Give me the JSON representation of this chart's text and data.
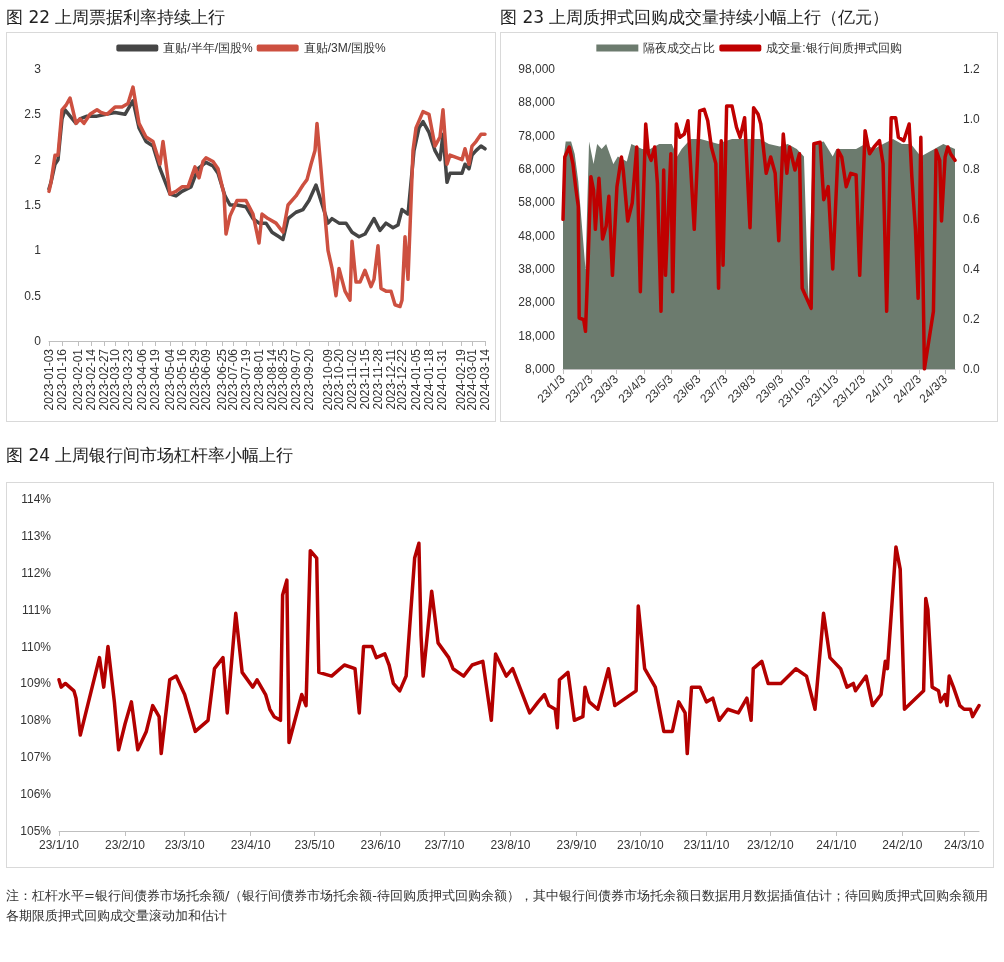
{
  "chart_data": [
    {
      "type": "line",
      "title": "图 22  上周票据利率持续上行",
      "legend": "top",
      "marker": "none",
      "line_style": "solid",
      "grid": false,
      "ylim": [
        0,
        3
      ],
      "yticks": [
        0,
        0.5,
        1,
        1.5,
        2,
        2.5,
        3
      ],
      "xlim": [
        "2023-01-03",
        "2024-03-14"
      ],
      "xticks": [
        "2023-01-03",
        "2023-01-16",
        "2023-02-01",
        "2023-02-14",
        "2023-02-27",
        "2023-03-10",
        "2023-03-23",
        "2023-04-06",
        "2023-04-19",
        "2023-05-04",
        "2023-05-16",
        "2023-05-29",
        "2023-06-09",
        "2023-06-25",
        "2023-07-06",
        "2023-07-19",
        "2023-08-01",
        "2023-08-14",
        "2023-08-25",
        "2023-09-07",
        "2023-09-20",
        "2023-10-09",
        "2023-10-20",
        "2023-11-02",
        "2023-11-15",
        "2023-11-28",
        "2023-12-11",
        "2023-12-22",
        "2024-01-05",
        "2024-01-18",
        "2024-01-31",
        "2024-02-19",
        "2024-03-01",
        "2024-03-14"
      ],
      "series": [
        {
          "name": "直贴/半年/国股%",
          "color": "#454545",
          "x": [
            "2023-01-03",
            "2023-01-05",
            "2023-01-09",
            "2023-01-12",
            "2023-01-16",
            "2023-01-19",
            "2023-01-30",
            "2023-02-03",
            "2023-02-10",
            "2023-02-20",
            "2023-03-01",
            "2023-03-10",
            "2023-03-20",
            "2023-03-28",
            "2023-04-03",
            "2023-04-10",
            "2023-04-17",
            "2023-04-24",
            "2023-05-04",
            "2023-05-10",
            "2023-05-16",
            "2023-05-25",
            "2023-06-01",
            "2023-06-09",
            "2023-06-16",
            "2023-06-21",
            "2023-06-28",
            "2023-07-03",
            "2023-07-10",
            "2023-07-19",
            "2023-07-26",
            "2023-08-01",
            "2023-08-08",
            "2023-08-14",
            "2023-08-21",
            "2023-08-25",
            "2023-08-30",
            "2023-09-07",
            "2023-09-14",
            "2023-09-20",
            "2023-09-27",
            "2023-10-09",
            "2023-10-13",
            "2023-10-20",
            "2023-10-27",
            "2023-11-02",
            "2023-11-09",
            "2023-11-15",
            "2023-11-24",
            "2023-11-30",
            "2023-12-06",
            "2023-12-13",
            "2023-12-18",
            "2023-12-22",
            "2023-12-28",
            "2024-01-03",
            "2024-01-08",
            "2024-01-12",
            "2024-01-18",
            "2024-01-24",
            "2024-01-29",
            "2024-02-01",
            "2024-02-05",
            "2024-02-08",
            "2024-02-20",
            "2024-02-23",
            "2024-02-27",
            "2024-03-01",
            "2024-03-05",
            "2024-03-10",
            "2024-03-14"
          ],
          "values": [
            1.68,
            1.75,
            1.95,
            2.0,
            2.45,
            2.55,
            2.4,
            2.45,
            2.48,
            2.48,
            2.5,
            2.52,
            2.5,
            2.65,
            2.35,
            2.2,
            2.15,
            1.9,
            1.62,
            1.6,
            1.65,
            1.7,
            1.9,
            1.97,
            1.93,
            1.85,
            1.6,
            1.5,
            1.5,
            1.48,
            1.35,
            1.3,
            1.3,
            1.2,
            1.15,
            1.12,
            1.35,
            1.42,
            1.45,
            1.55,
            1.72,
            1.3,
            1.35,
            1.3,
            1.3,
            1.2,
            1.15,
            1.18,
            1.35,
            1.22,
            1.3,
            1.25,
            1.28,
            1.45,
            1.4,
            2.1,
            2.35,
            2.42,
            2.3,
            2.1,
            2.0,
            2.28,
            1.75,
            1.85,
            1.85,
            1.95,
            1.9,
            2.05,
            2.1,
            2.15,
            2.12
          ]
        },
        {
          "name": "直贴/3M/国股%",
          "color": "#cd5040",
          "x": [
            "2023-01-03",
            "2023-01-05",
            "2023-01-09",
            "2023-01-12",
            "2023-01-16",
            "2023-01-20",
            "2023-01-24",
            "2023-01-30",
            "2023-02-03",
            "2023-02-07",
            "2023-02-13",
            "2023-02-20",
            "2023-02-24",
            "2023-03-02",
            "2023-03-10",
            "2023-03-17",
            "2023-03-23",
            "2023-03-28",
            "2023-04-03",
            "2023-04-10",
            "2023-04-17",
            "2023-04-24",
            "2023-04-27",
            "2023-05-04",
            "2023-05-10",
            "2023-05-16",
            "2023-05-22",
            "2023-05-29",
            "2023-06-02",
            "2023-06-06",
            "2023-06-09",
            "2023-06-16",
            "2023-06-21",
            "2023-06-27",
            "2023-06-29",
            "2023-07-03",
            "2023-07-10",
            "2023-07-19",
            "2023-07-26",
            "2023-08-01",
            "2023-08-04",
            "2023-08-10",
            "2023-08-18",
            "2023-08-25",
            "2023-08-30",
            "2023-09-07",
            "2023-09-14",
            "2023-09-18",
            "2023-09-22",
            "2023-09-26",
            "2023-09-28",
            "2023-10-09",
            "2023-10-13",
            "2023-10-17",
            "2023-10-20",
            "2023-10-26",
            "2023-10-31",
            "2023-11-02",
            "2023-11-06",
            "2023-11-10",
            "2023-11-15",
            "2023-11-21",
            "2023-11-24",
            "2023-11-28",
            "2023-12-01",
            "2023-12-06",
            "2023-12-11",
            "2023-12-15",
            "2023-12-20",
            "2023-12-22",
            "2023-12-25",
            "2023-12-28",
            "2024-01-02",
            "2024-01-05",
            "2024-01-12",
            "2024-01-18",
            "2024-01-24",
            "2024-01-29",
            "2024-02-01",
            "2024-02-05",
            "2024-02-08",
            "2024-02-20",
            "2024-02-23",
            "2024-02-27",
            "2024-03-01",
            "2024-03-05",
            "2024-03-10",
            "2024-03-14"
          ],
          "values": [
            1.65,
            1.75,
            2.05,
            2.05,
            2.55,
            2.6,
            2.68,
            2.4,
            2.45,
            2.4,
            2.5,
            2.55,
            2.52,
            2.5,
            2.58,
            2.58,
            2.62,
            2.8,
            2.4,
            2.25,
            2.2,
            1.95,
            2.2,
            1.62,
            1.65,
            1.7,
            1.7,
            1.92,
            1.8,
            1.98,
            2.02,
            1.98,
            1.9,
            1.62,
            1.18,
            1.38,
            1.55,
            1.55,
            1.4,
            1.08,
            1.4,
            1.35,
            1.3,
            1.2,
            1.5,
            1.6,
            1.72,
            1.78,
            1.95,
            2.1,
            2.4,
            1.0,
            0.8,
            0.5,
            0.8,
            0.55,
            0.45,
            1.1,
            0.65,
            0.65,
            0.78,
            0.6,
            0.68,
            1.05,
            0.58,
            0.55,
            0.55,
            0.4,
            0.38,
            0.45,
            1.15,
            0.68,
            2.1,
            2.35,
            2.53,
            2.5,
            2.15,
            2.25,
            2.55,
            1.95,
            2.05,
            2.0,
            2.12,
            1.95,
            2.15,
            2.2,
            2.28,
            2.28
          ]
        }
      ]
    },
    {
      "type": "line",
      "title": "图 23  上周质押式回购成交量持续小幅上行（亿元）",
      "legend": "top",
      "marker": "none",
      "line_style": "solid",
      "grid": false,
      "ylim": [
        8000,
        98000
      ],
      "yticks": [
        {
          "value": 8000,
          "label": "8,000"
        },
        {
          "value": 18000,
          "label": "18,000"
        },
        {
          "value": 28000,
          "label": "28,000"
        },
        {
          "value": 38000,
          "label": "38,000"
        },
        {
          "value": 48000,
          "label": "48,000"
        },
        {
          "value": 58000,
          "label": "58,000"
        },
        {
          "value": 68000,
          "label": "68,000"
        },
        {
          "value": 78000,
          "label": "78,000"
        },
        {
          "value": 88000,
          "label": "88,000"
        },
        {
          "value": 98000,
          "label": "98,000"
        }
      ],
      "y2lim": [
        0,
        1.2
      ],
      "y2ticks": [
        {
          "value": 0,
          "label": "0.0"
        },
        {
          "value": 0.2,
          "label": "0.2"
        },
        {
          "value": 0.4,
          "label": "0.4"
        },
        {
          "value": 0.6,
          "label": "0.6"
        },
        {
          "value": 0.8,
          "label": "0.8"
        },
        {
          "value": 1,
          "label": "1.0"
        },
        {
          "value": 1.2,
          "label": "1.2"
        }
      ],
      "xlim": [
        "2023-01-03",
        "2024-03-14"
      ],
      "xticks": [
        {
          "value": "2023-01-03",
          "label": "23/1/3"
        },
        {
          "value": "2023-02-03",
          "label": "23/2/3"
        },
        {
          "value": "2023-03-03",
          "label": "23/3/3"
        },
        {
          "value": "2023-04-03",
          "label": "23/4/3"
        },
        {
          "value": "2023-05-03",
          "label": "23/5/3"
        },
        {
          "value": "2023-06-03",
          "label": "23/6/3"
        },
        {
          "value": "2023-07-03",
          "label": "23/7/3"
        },
        {
          "value": "2023-08-03",
          "label": "23/8/3"
        },
        {
          "value": "2023-09-03",
          "label": "23/9/3"
        },
        {
          "value": "2023-10-03",
          "label": "23/10/3"
        },
        {
          "value": "2023-11-03",
          "label": "23/11/3"
        },
        {
          "value": "2023-12-03",
          "label": "23/12/3"
        },
        {
          "value": "2024-01-03",
          "label": "24/1/3"
        },
        {
          "value": "2024-02-03",
          "label": "24/2/3"
        },
        {
          "value": "2024-03-03",
          "label": "24/3/3"
        }
      ],
      "series": [
        {
          "name": "隔夜成交占比",
          "type": "area",
          "axis": "y2",
          "color": "#6c7b6e",
          "x": [
            "2023-01-03",
            "2023-01-06",
            "2023-01-12",
            "2023-01-16",
            "2023-01-20",
            "2023-01-28",
            "2023-02-01",
            "2023-02-06",
            "2023-02-10",
            "2023-02-15",
            "2023-02-20",
            "2023-02-28",
            "2023-03-05",
            "2023-03-15",
            "2023-03-20",
            "2023-04-01",
            "2023-04-10",
            "2023-04-20",
            "2023-05-04",
            "2023-05-10",
            "2023-05-15",
            "2023-05-25",
            "2023-06-05",
            "2023-06-15",
            "2023-06-25",
            "2023-07-01",
            "2023-07-10",
            "2023-07-20",
            "2023-08-01",
            "2023-08-10",
            "2023-08-20",
            "2023-09-01",
            "2023-09-10",
            "2023-09-20",
            "2023-09-28",
            "2023-10-03",
            "2023-10-08",
            "2023-10-20",
            "2023-10-30",
            "2023-11-03",
            "2023-11-15",
            "2023-11-25",
            "2023-12-05",
            "2023-12-15",
            "2023-12-25",
            "2024-01-05",
            "2024-01-15",
            "2024-01-25",
            "2024-02-05",
            "2024-02-10",
            "2024-02-20",
            "2024-03-01",
            "2024-03-14"
          ],
          "values": [
            0.82,
            0.91,
            0.91,
            0.86,
            0.75,
            0.4,
            0.91,
            0.82,
            0.9,
            0.88,
            0.9,
            0.82,
            0.85,
            0.83,
            0.9,
            0.88,
            0.88,
            0.9,
            0.9,
            0.85,
            0.88,
            0.92,
            0.92,
            0.91,
            0.9,
            0.91,
            0.92,
            0.92,
            0.92,
            0.92,
            0.9,
            0.89,
            0.9,
            0.88,
            0.85,
            0.27,
            0.9,
            0.91,
            0.85,
            0.88,
            0.88,
            0.88,
            0.9,
            0.88,
            0.9,
            0.92,
            0.9,
            0.9,
            0.85,
            0.86,
            0.88,
            0.9,
            0.88
          ]
        },
        {
          "name": "成交量:银行间质押式回购",
          "color": "#c00000",
          "x": [
            "2023-01-03",
            "2023-01-05",
            "2023-01-10",
            "2023-01-14",
            "2023-01-17",
            "2023-01-20",
            "2023-01-21",
            "2023-01-26",
            "2023-01-28",
            "2023-01-31",
            "2023-02-03",
            "2023-02-06",
            "2023-02-08",
            "2023-02-12",
            "2023-02-16",
            "2023-02-20",
            "2023-02-23",
            "2023-02-27",
            "2023-03-04",
            "2023-03-09",
            "2023-03-11",
            "2023-03-16",
            "2023-03-21",
            "2023-03-26",
            "2023-03-30",
            "2023-04-05",
            "2023-04-08",
            "2023-04-11",
            "2023-04-15",
            "2023-04-18",
            "2023-04-22",
            "2023-04-25",
            "2023-04-27",
            "2023-05-03",
            "2023-05-05",
            "2023-05-09",
            "2023-05-13",
            "2023-05-18",
            "2023-05-22",
            "2023-05-29",
            "2023-06-04",
            "2023-06-09",
            "2023-06-13",
            "2023-06-17",
            "2023-06-22",
            "2023-06-25",
            "2023-06-28",
            "2023-06-30",
            "2023-07-04",
            "2023-07-10",
            "2023-07-15",
            "2023-07-19",
            "2023-07-24",
            "2023-07-30",
            "2023-08-03",
            "2023-08-08",
            "2023-08-11",
            "2023-08-17",
            "2023-08-22",
            "2023-08-27",
            "2023-08-31",
            "2023-09-05",
            "2023-09-09",
            "2023-09-12",
            "2023-09-18",
            "2023-09-23",
            "2023-09-26",
            "2023-10-06",
            "2023-10-09",
            "2023-10-16",
            "2023-10-20",
            "2023-10-25",
            "2023-10-30",
            "2023-11-05",
            "2023-11-09",
            "2023-11-14",
            "2023-11-19",
            "2023-11-25",
            "2023-11-29",
            "2023-12-05",
            "2023-12-10",
            "2023-12-15",
            "2023-12-21",
            "2023-12-25",
            "2023-12-29",
            "2024-01-03",
            "2024-01-08",
            "2024-01-11",
            "2024-01-17",
            "2024-01-23",
            "2024-01-26",
            "2024-01-30",
            "2024-02-02",
            "2024-02-05",
            "2024-02-09",
            "2024-02-19",
            "2024-02-22",
            "2024-02-26",
            "2024-02-28",
            "2024-03-03",
            "2024-03-06",
            "2024-03-09",
            "2024-03-14"
          ],
          "values": [
            52900,
            71600,
            74600,
            69600,
            62700,
            56800,
            23300,
            22800,
            19300,
            41000,
            65700,
            61700,
            49900,
            65200,
            47000,
            50900,
            59800,
            36100,
            62700,
            71600,
            67700,
            52400,
            57800,
            74600,
            31200,
            81500,
            72600,
            70600,
            74600,
            63700,
            25300,
            67700,
            36100,
            72600,
            31200,
            81500,
            77500,
            78500,
            82500,
            49900,
            85400,
            85900,
            82500,
            74600,
            69600,
            32200,
            76500,
            39100,
            86900,
            86900,
            80500,
            77500,
            83400,
            50400,
            86400,
            84400,
            81500,
            66700,
            71600,
            66700,
            46500,
            78500,
            66700,
            74600,
            67700,
            72600,
            32200,
            26200,
            75600,
            76000,
            58800,
            62700,
            38000,
            73600,
            71600,
            62700,
            66700,
            66200,
            36100,
            79500,
            72600,
            74600,
            76500,
            69600,
            25300,
            83400,
            83400,
            77500,
            76500,
            81500,
            65700,
            49900,
            29200,
            77500,
            8000,
            25300,
            73600,
            70600,
            52400,
            71600,
            74600,
            72600,
            70600
          ]
        }
      ]
    },
    {
      "type": "line",
      "title": "图 24  上周银行间市场杠杆率小幅上行",
      "marker": "none",
      "line_style": "solid",
      "grid": false,
      "annotations": [
        "注：杠杆水平=银行间债券市场托余额/（银行间债券市场托余额-待回购质押式回购余额），其中银行间债券市场托余额日数据用月数据插值估计；待回购质押式回购余额用各期限质押式回购成交量滚动加和估计"
      ],
      "ylim": [
        105,
        114
      ],
      "yticks": [
        {
          "value": 105,
          "label": "105%"
        },
        {
          "value": 106,
          "label": "106%"
        },
        {
          "value": 107,
          "label": "107%"
        },
        {
          "value": 108,
          "label": "108%"
        },
        {
          "value": 109,
          "label": "109%"
        },
        {
          "value": 110,
          "label": "110%"
        },
        {
          "value": 111,
          "label": "111%"
        },
        {
          "value": 112,
          "label": "112%"
        },
        {
          "value": 113,
          "label": "113%"
        },
        {
          "value": 114,
          "label": "114%"
        }
      ],
      "xlim": [
        "2023-01-10",
        "2024-03-17"
      ],
      "xticks": [
        {
          "value": "2023-01-10",
          "label": "23/1/10"
        },
        {
          "value": "2023-02-10",
          "label": "23/2/10"
        },
        {
          "value": "2023-03-10",
          "label": "23/3/10"
        },
        {
          "value": "2023-04-10",
          "label": "23/4/10"
        },
        {
          "value": "2023-05-10",
          "label": "23/5/10"
        },
        {
          "value": "2023-06-10",
          "label": "23/6/10"
        },
        {
          "value": "2023-07-10",
          "label": "23/7/10"
        },
        {
          "value": "2023-08-10",
          "label": "23/8/10"
        },
        {
          "value": "2023-09-10",
          "label": "23/9/10"
        },
        {
          "value": "2023-10-10",
          "label": "23/10/10"
        },
        {
          "value": "2023-11-10",
          "label": "23/11/10"
        },
        {
          "value": "2023-12-10",
          "label": "23/12/10"
        },
        {
          "value": "2024-01-10",
          "label": "24/1/10"
        },
        {
          "value": "2024-02-10",
          "label": "24/2/10"
        },
        {
          "value": "2024-03-10",
          "label": "24/3/10"
        }
      ],
      "series": [
        {
          "color": "#b30000",
          "x": [
            "2023-01-10",
            "2023-01-11",
            "2023-01-13",
            "2023-01-17",
            "2023-01-18",
            "2023-01-20",
            "2023-01-29",
            "2023-01-31",
            "2023-02-02",
            "2023-02-05",
            "2023-02-07",
            "2023-02-10",
            "2023-02-13",
            "2023-02-16",
            "2023-02-20",
            "2023-02-23",
            "2023-02-26",
            "2023-02-27",
            "2023-03-03",
            "2023-03-06",
            "2023-03-10",
            "2023-03-15",
            "2023-03-21",
            "2023-03-24",
            "2023-03-28",
            "2023-03-30",
            "2023-04-03",
            "2023-04-06",
            "2023-04-11",
            "2023-04-13",
            "2023-04-17",
            "2023-04-19",
            "2023-04-21",
            "2023-04-24",
            "2023-04-25",
            "2023-04-27",
            "2023-04-28",
            "2023-05-04",
            "2023-05-06",
            "2023-05-08",
            "2023-05-11",
            "2023-05-12",
            "2023-05-18",
            "2023-05-24",
            "2023-05-29",
            "2023-05-31",
            "2023-06-02",
            "2023-06-06",
            "2023-06-08",
            "2023-06-12",
            "2023-06-14",
            "2023-06-16",
            "2023-06-19",
            "2023-06-22",
            "2023-06-26",
            "2023-06-28",
            "2023-06-29",
            "2023-06-30",
            "2023-07-04",
            "2023-07-07",
            "2023-07-12",
            "2023-07-14",
            "2023-07-19",
            "2023-07-23",
            "2023-07-28",
            "2023-08-01",
            "2023-08-03",
            "2023-08-08",
            "2023-08-11",
            "2023-08-19",
            "2023-08-23",
            "2023-08-26",
            "2023-08-28",
            "2023-08-31",
            "2023-09-01",
            "2023-09-02",
            "2023-09-06",
            "2023-09-09",
            "2023-09-13",
            "2023-09-14",
            "2023-09-16",
            "2023-09-20",
            "2023-09-25",
            "2023-09-28",
            "2023-10-08",
            "2023-10-09",
            "2023-10-12",
            "2023-10-17",
            "2023-10-21",
            "2023-10-25",
            "2023-10-28",
            "2023-10-31",
            "2023-11-01",
            "2023-11-03",
            "2023-11-07",
            "2023-11-10",
            "2023-11-13",
            "2023-11-16",
            "2023-11-20",
            "2023-11-25",
            "2023-11-29",
            "2023-12-01",
            "2023-12-02",
            "2023-12-06",
            "2023-12-09",
            "2023-12-15",
            "2023-12-22",
            "2023-12-27",
            "2023-12-31",
            "2024-01-04",
            "2024-01-07",
            "2024-01-12",
            "2024-01-15",
            "2024-01-18",
            "2024-01-19",
            "2024-01-24",
            "2024-01-27",
            "2024-01-31",
            "2024-02-02",
            "2024-02-03",
            "2024-02-07",
            "2024-02-09",
            "2024-02-11",
            "2024-02-20",
            "2024-02-21",
            "2024-02-22",
            "2024-02-24",
            "2024-02-27",
            "2024-02-28",
            "2024-03-01",
            "2024-03-02",
            "2024-03-03",
            "2024-03-05",
            "2024-03-08",
            "2024-03-10",
            "2024-03-13",
            "2024-03-14",
            "2024-03-15",
            "2024-03-17"
          ],
          "values": [
            109.1,
            108.9,
            109.0,
            108.8,
            108.6,
            107.6,
            109.7,
            108.9,
            110.0,
            108.5,
            107.2,
            107.9,
            108.5,
            107.2,
            107.7,
            108.4,
            108.1,
            107.1,
            109.1,
            109.2,
            108.7,
            107.7,
            108.0,
            109.4,
            109.7,
            108.2,
            110.9,
            109.3,
            108.9,
            109.1,
            108.7,
            108.3,
            108.1,
            108.0,
            111.4,
            111.8,
            107.4,
            108.7,
            108.4,
            112.6,
            112.4,
            109.3,
            109.2,
            109.5,
            109.4,
            108.2,
            110.0,
            110.0,
            109.7,
            109.8,
            109.5,
            109.0,
            108.8,
            109.2,
            112.4,
            112.8,
            110.3,
            109.2,
            111.5,
            110.1,
            109.7,
            109.4,
            109.2,
            109.5,
            109.6,
            108.0,
            109.8,
            109.2,
            109.4,
            108.2,
            108.5,
            108.7,
            108.4,
            108.3,
            107.8,
            109.1,
            109.3,
            108.0,
            108.1,
            108.9,
            108.5,
            108.3,
            109.4,
            108.4,
            108.8,
            111.1,
            109.4,
            108.9,
            107.7,
            107.7,
            108.5,
            108.2,
            107.1,
            108.9,
            108.9,
            108.5,
            108.6,
            108.0,
            108.3,
            108.2,
            108.6,
            108.0,
            109.4,
            109.6,
            109.0,
            109.0,
            109.4,
            109.2,
            108.3,
            110.9,
            109.7,
            109.4,
            108.9,
            109.0,
            108.8,
            109.2,
            108.4,
            108.7,
            109.6,
            109.4,
            112.7,
            112.1,
            108.3,
            108.8,
            111.3,
            111.0,
            108.9,
            108.8,
            108.5,
            108.7,
            108.4,
            109.2,
            108.9,
            108.4,
            108.3,
            108.3,
            108.1,
            108.2,
            108.4
          ]
        }
      ]
    }
  ]
}
